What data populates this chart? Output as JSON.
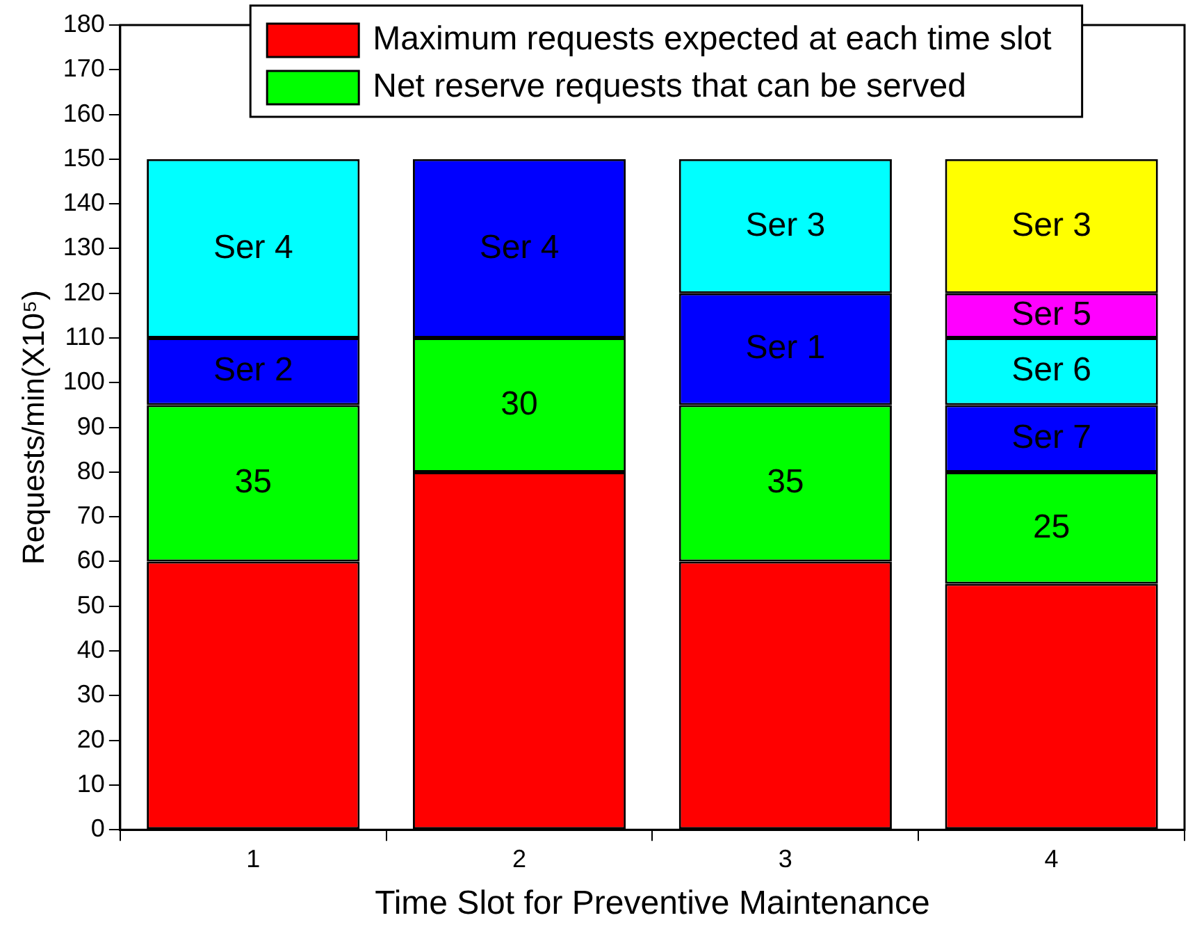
{
  "chart_data": {
    "type": "bar",
    "stacked": true,
    "xlabel": "Time Slot for Preventive Maintenance",
    "ylabel": "Requests/min(X10⁵)",
    "categories": [
      "1",
      "2",
      "3",
      "4"
    ],
    "ylim": [
      0,
      180
    ],
    "yticks": [
      0,
      10,
      20,
      30,
      40,
      50,
      60,
      70,
      80,
      90,
      100,
      110,
      120,
      130,
      140,
      150,
      160,
      170,
      180
    ],
    "grid": false,
    "legend": "top",
    "series": [
      {
        "name": "Maximum requests expected at each time slot",
        "color": "#ff0000",
        "values": [
          60,
          80,
          60,
          55
        ]
      },
      {
        "name": "Net reserve requests that can be served",
        "color": "#00ff00",
        "values": [
          35,
          30,
          35,
          25
        ],
        "value_labels": [
          "35",
          "30",
          "35",
          "25"
        ]
      },
      {
        "color": "#0000ff",
        "values": [
          15,
          40,
          25,
          15
        ],
        "value_labels": [
          "Ser 2",
          "Ser 4",
          "Ser 1",
          "Ser 7"
        ]
      },
      {
        "color": "#00ffff",
        "values": [
          40,
          null,
          30,
          15
        ],
        "value_labels": [
          "Ser 4",
          null,
          "Ser 3",
          "Ser 6"
        ]
      },
      {
        "color": "#ff00ff",
        "values": [
          null,
          null,
          null,
          10
        ],
        "value_labels": [
          null,
          null,
          null,
          "Ser 5"
        ]
      },
      {
        "color": "#ffff00",
        "values": [
          null,
          null,
          null,
          30
        ],
        "value_labels": [
          null,
          null,
          null,
          "Ser 3"
        ]
      }
    ]
  }
}
